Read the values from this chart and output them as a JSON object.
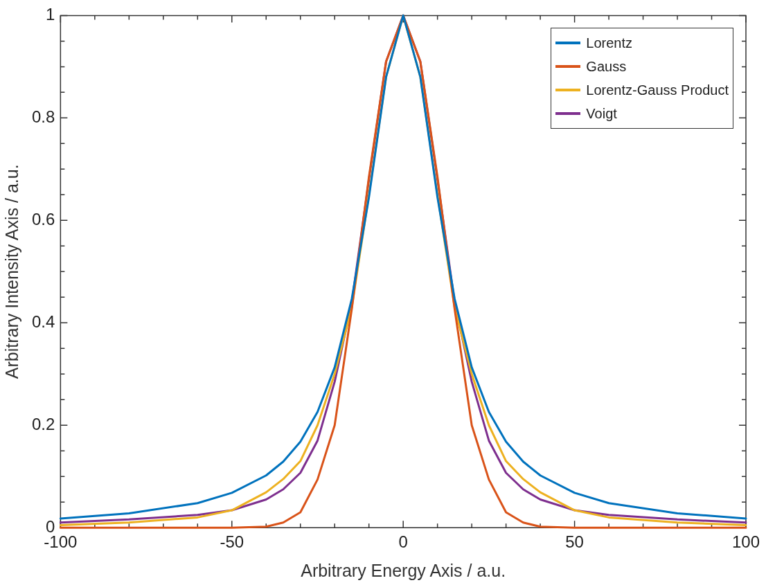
{
  "chart_data": {
    "type": "line",
    "xlabel": "Arbitrary Energy Axis / a.u.",
    "ylabel": "Arbitrary Intensity Axis / a.u.",
    "x": [
      -100,
      -80,
      -60,
      -50,
      -40,
      -35,
      -30,
      -25,
      -20,
      -15,
      -10,
      -5,
      0,
      5,
      10,
      15,
      20,
      25,
      30,
      35,
      40,
      50,
      60,
      80,
      100
    ],
    "series": [
      {
        "name": "Lorentz",
        "color": "#0072bd",
        "values": [
          0.018,
          0.028,
          0.048,
          0.068,
          0.102,
          0.129,
          0.168,
          0.226,
          0.313,
          0.447,
          0.645,
          0.88,
          1,
          0.88,
          0.645,
          0.447,
          0.313,
          0.226,
          0.168,
          0.129,
          0.102,
          0.068,
          0.048,
          0.028,
          0.018
        ]
      },
      {
        "name": "Gauss",
        "color": "#d95319",
        "values": [
          0,
          0,
          0,
          0,
          0.002,
          0.01,
          0.03,
          0.094,
          0.2,
          0.427,
          0.685,
          0.91,
          1,
          0.91,
          0.685,
          0.427,
          0.2,
          0.094,
          0.03,
          0.01,
          0.002,
          0,
          0,
          0,
          0
        ]
      },
      {
        "name": "Lorentz-Gauss Product",
        "color": "#edb120",
        "values": [
          0.005,
          0.01,
          0.02,
          0.034,
          0.069,
          0.095,
          0.13,
          0.2,
          0.3,
          0.43,
          0.65,
          0.88,
          1,
          0.88,
          0.65,
          0.43,
          0.3,
          0.2,
          0.13,
          0.095,
          0.069,
          0.034,
          0.02,
          0.01,
          0.005
        ]
      },
      {
        "name": "Voigt",
        "color": "#7e2f8e",
        "values": [
          0.01,
          0.016,
          0.025,
          0.034,
          0.055,
          0.075,
          0.107,
          0.17,
          0.285,
          0.44,
          0.68,
          0.91,
          1,
          0.91,
          0.68,
          0.44,
          0.285,
          0.17,
          0.107,
          0.075,
          0.055,
          0.034,
          0.025,
          0.016,
          0.01
        ]
      }
    ],
    "xlim": [
      -100,
      100
    ],
    "xticks": [
      -100,
      {
        "value": -90,
        "label": null
      },
      {
        "value": -80,
        "label": null
      },
      {
        "value": -70,
        "label": null
      },
      {
        "value": -60,
        "label": null
      },
      -50,
      {
        "value": -40,
        "label": null
      },
      {
        "value": -30,
        "label": null
      },
      {
        "value": -20,
        "label": null
      },
      {
        "value": -10,
        "label": null
      },
      0,
      {
        "value": 10,
        "label": null
      },
      {
        "value": 20,
        "label": null
      },
      {
        "value": 30,
        "label": null
      },
      {
        "value": 40,
        "label": null
      },
      50,
      {
        "value": 60,
        "label": null
      },
      {
        "value": 70,
        "label": null
      },
      {
        "value": 80,
        "label": null
      },
      {
        "value": 90,
        "label": null
      },
      100
    ],
    "ylim": [
      0,
      1
    ],
    "yticks": [
      0,
      {
        "value": 0.05,
        "label": null
      },
      {
        "value": 0.1,
        "label": null
      },
      {
        "value": 0.15,
        "label": null
      },
      0.2,
      {
        "value": 0.25,
        "label": null
      },
      {
        "value": 0.3,
        "label": null
      },
      {
        "value": 0.35,
        "label": null
      },
      0.4,
      {
        "value": 0.45,
        "label": null
      },
      {
        "value": 0.5,
        "label": null
      },
      {
        "value": 0.55,
        "label": null
      },
      0.6,
      {
        "value": 0.65,
        "label": null
      },
      {
        "value": 0.7,
        "label": null
      },
      {
        "value": 0.75,
        "label": null
      },
      0.8,
      {
        "value": 0.85,
        "label": null
      },
      {
        "value": 0.9,
        "label": null
      },
      {
        "value": 0.95,
        "label": null
      },
      1
    ],
    "grid": false,
    "legend": "top right",
    "marker": "none",
    "line_style": "solid"
  }
}
